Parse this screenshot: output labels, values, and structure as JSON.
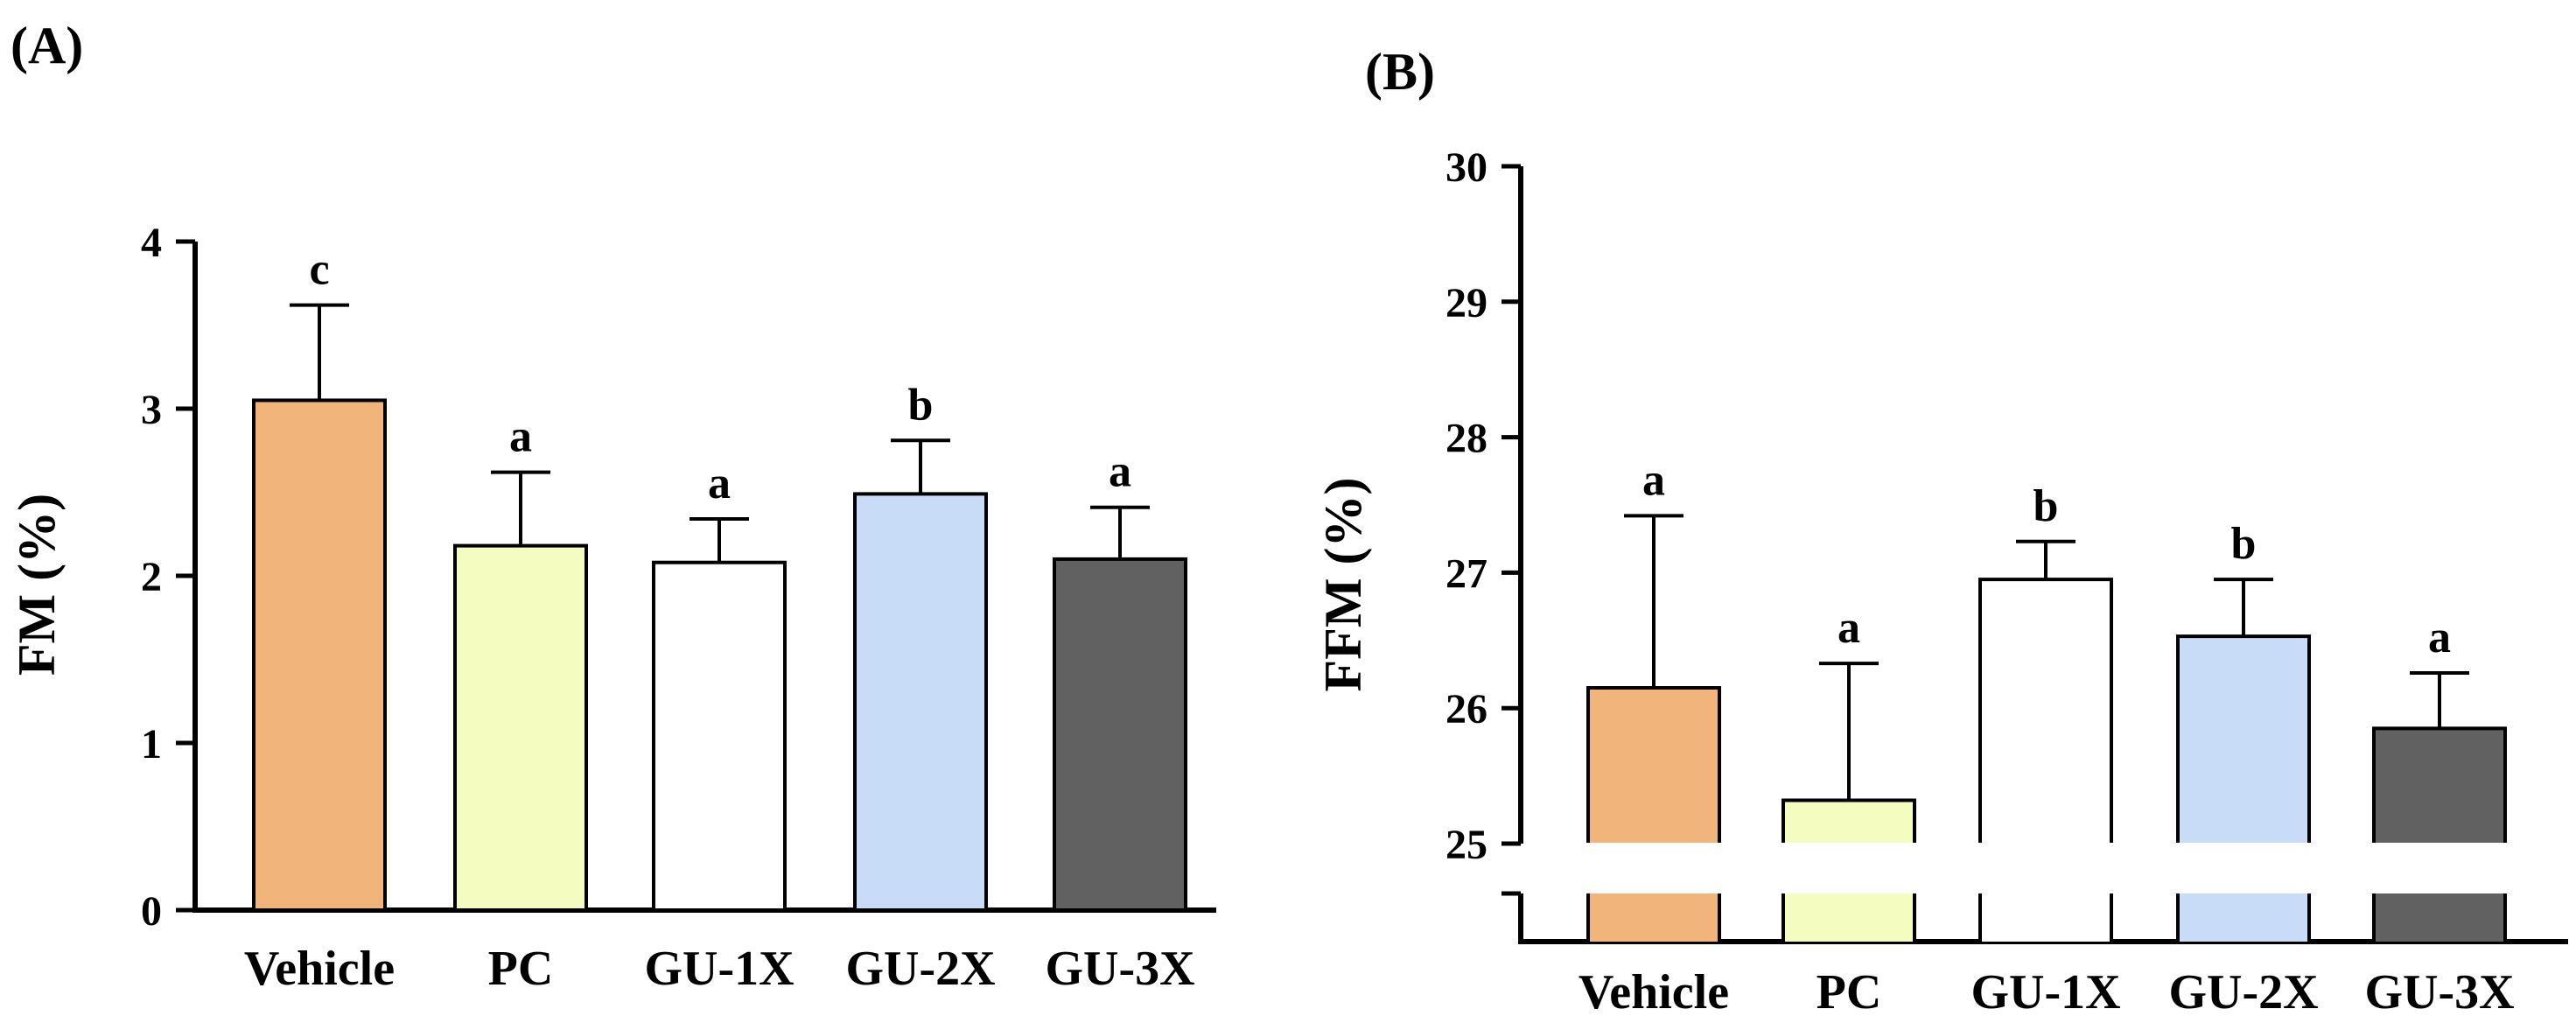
{
  "chart_data": [
    {
      "panel_label": "(A)",
      "type": "bar",
      "title": "",
      "xlabel": "",
      "ylabel": "FM (%)",
      "ylim": [
        0,
        4
      ],
      "yticks": [
        "0",
        "1",
        "2",
        "3",
        "4"
      ],
      "grid": false,
      "categories": [
        "Vehicle",
        "PC",
        "GU-1X",
        "GU-2X",
        "GU-3X"
      ],
      "values": [
        3.05,
        2.18,
        2.08,
        2.49,
        2.1
      ],
      "errors": [
        0.57,
        0.44,
        0.26,
        0.32,
        0.31
      ],
      "significance": [
        "c",
        "a",
        "a",
        "b",
        "a"
      ],
      "bar_colors": [
        "#f1b47a",
        "#f4fdbf",
        "#ffffff",
        "#c8dcf7",
        "#616161"
      ]
    },
    {
      "panel_label": "(B)",
      "type": "bar",
      "title": "",
      "xlabel": "",
      "ylabel": "FFM (%)",
      "ylim": [
        25,
        30
      ],
      "axis_break": true,
      "yticks": [
        "25",
        "26",
        "27",
        "28",
        "29",
        "30"
      ],
      "grid": false,
      "categories": [
        "Vehicle",
        "PC",
        "GU-1X",
        "GU-2X",
        "GU-3X"
      ],
      "values": [
        26.15,
        25.32,
        26.95,
        26.53,
        25.85
      ],
      "errors": [
        1.27,
        1.01,
        0.28,
        0.42,
        0.41
      ],
      "significance": [
        "a",
        "a",
        "b",
        "b",
        "a"
      ],
      "bar_colors": [
        "#f1b47a",
        "#f4fdbf",
        "#ffffff",
        "#c8dcf7",
        "#616161"
      ]
    }
  ]
}
